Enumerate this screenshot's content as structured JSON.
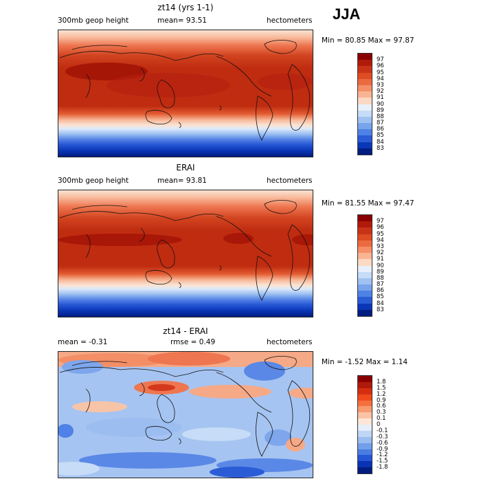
{
  "season": "JJA",
  "panels": [
    {
      "title": "zt14 (yrs 1-1)",
      "left_label": "300mb geop height",
      "center_label": "mean=  93.51",
      "right_label": "hectometers",
      "minmax": "Min =  80.85 Max =  97.87",
      "colorbar": {
        "labels": [
          "97",
          "96",
          "95",
          "94",
          "93",
          "92",
          "91",
          "90",
          "89",
          "88",
          "87",
          "86",
          "85",
          "84",
          "83"
        ],
        "colors": [
          "#8a0000",
          "#b01a0a",
          "#c83318",
          "#dd4c22",
          "#ec6a3f",
          "#f58f67",
          "#f9b593",
          "#fbd9c4",
          "#e8f0fb",
          "#c6dcf7",
          "#a0c2f2",
          "#78a4ec",
          "#4f82e6",
          "#2a5cd6",
          "#0a37b8",
          "#021d80"
        ]
      }
    },
    {
      "title": "ERAI",
      "left_label": "300mb geop height",
      "center_label": "mean=  93.81",
      "right_label": "hectometers",
      "minmax": "Min =  81.55 Max =  97.47",
      "colorbar": {
        "labels": [
          "97",
          "96",
          "95",
          "94",
          "93",
          "92",
          "91",
          "90",
          "89",
          "88",
          "87",
          "86",
          "85",
          "84",
          "83"
        ],
        "colors": [
          "#8a0000",
          "#b01a0a",
          "#c83318",
          "#dd4c22",
          "#ec6a3f",
          "#f58f67",
          "#f9b593",
          "#fbd9c4",
          "#e8f0fb",
          "#c6dcf7",
          "#a0c2f2",
          "#78a4ec",
          "#4f82e6",
          "#2a5cd6",
          "#0a37b8",
          "#021d80"
        ]
      }
    },
    {
      "title": "zt14 - ERAI",
      "left_label": "mean =   -0.31",
      "center_label": "rmse =    0.49",
      "right_label": "hectometers",
      "minmax": "Min =  -1.52 Max =    1.14",
      "colorbar": {
        "labels": [
          "1.8",
          "1.5",
          "1.2",
          "0.9",
          "0.6",
          "0.3",
          "0.1",
          "0",
          "-0.1",
          "-0.3",
          "-0.6",
          "-0.9",
          "-1.2",
          "-1.5",
          "-1.8"
        ],
        "colors": [
          "#8a0000",
          "#b01a0a",
          "#d42e12",
          "#f04a1c",
          "#f5703f",
          "#f89a70",
          "#fbc3a6",
          "#fde6d8",
          "#e5eefb",
          "#c0d6f6",
          "#9bbdf0",
          "#729fea",
          "#4a7de2",
          "#2457d4",
          "#0933b4",
          "#021d80"
        ]
      }
    }
  ]
}
